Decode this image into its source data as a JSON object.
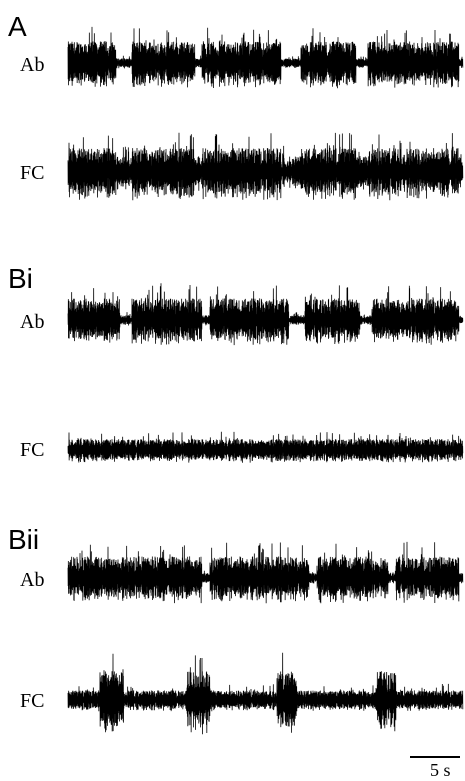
{
  "figure": {
    "panels": [
      {
        "label": "A",
        "traces": [
          {
            "label": "Ab",
            "pattern": "bursting",
            "bursts": [
              [
                0.0,
                0.12
              ],
              [
                0.16,
                0.32
              ],
              [
                0.34,
                0.54
              ],
              [
                0.59,
                0.73
              ],
              [
                0.76,
                0.99
              ]
            ]
          },
          {
            "label": "FC",
            "pattern": "bursting-weak",
            "bursts": [
              [
                0.0,
                0.12
              ],
              [
                0.16,
                0.32
              ],
              [
                0.34,
                0.54
              ],
              [
                0.59,
                0.73
              ],
              [
                0.76,
                0.99
              ]
            ]
          }
        ]
      },
      {
        "label": "Bi",
        "traces": [
          {
            "label": "Ab",
            "pattern": "bursting",
            "bursts": [
              [
                0.0,
                0.13
              ],
              [
                0.16,
                0.34
              ],
              [
                0.36,
                0.56
              ],
              [
                0.6,
                0.74
              ],
              [
                0.77,
                0.99
              ]
            ]
          },
          {
            "label": "FC",
            "pattern": "tonic",
            "bursts": []
          }
        ]
      },
      {
        "label": "Bii",
        "traces": [
          {
            "label": "Ab",
            "pattern": "bursting",
            "bursts": [
              [
                0.0,
                0.34
              ],
              [
                0.36,
                0.61
              ],
              [
                0.63,
                0.81
              ],
              [
                0.83,
                0.99
              ]
            ]
          },
          {
            "label": "FC",
            "pattern": "spiky",
            "bursts": [
              [
                0.08,
                0.14
              ],
              [
                0.3,
                0.36
              ],
              [
                0.53,
                0.58
              ],
              [
                0.78,
                0.83
              ]
            ]
          }
        ]
      }
    ],
    "scale_bar": {
      "label": "5 s"
    }
  }
}
